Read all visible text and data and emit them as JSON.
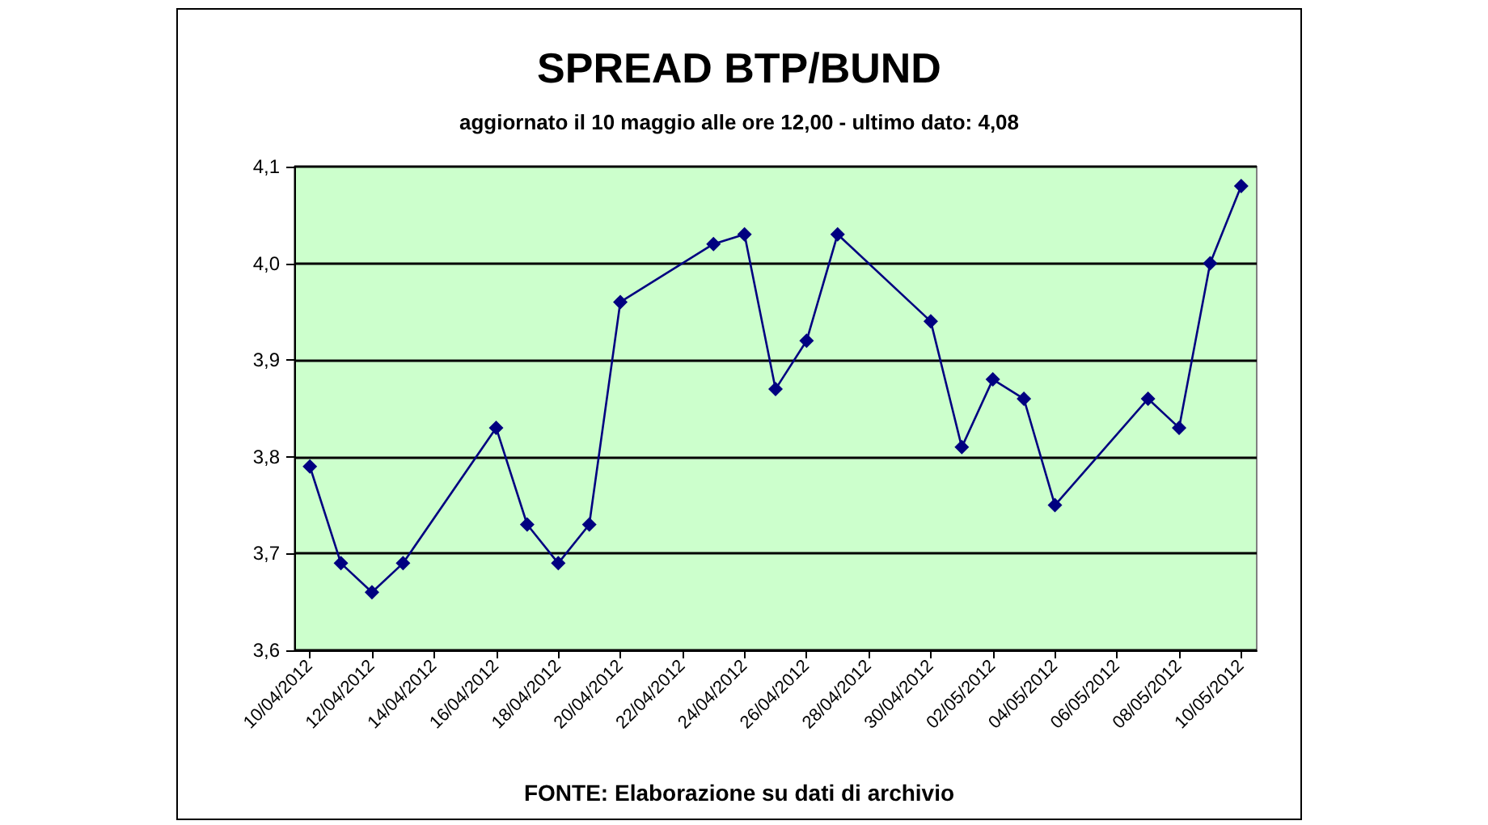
{
  "chart_data": {
    "type": "line",
    "title": "SPREAD BTP/BUND",
    "subtitle": "aggiornato il 10 maggio alle ore 12,00 - ultimo dato: 4,08",
    "annotations": [
      "FONTE: Elaborazione su dati di archivio"
    ],
    "x": [
      "2012-04-10",
      "2012-04-11",
      "2012-04-12",
      "2012-04-13",
      "2012-04-16",
      "2012-04-17",
      "2012-04-18",
      "2012-04-19",
      "2012-04-20",
      "2012-04-23",
      "2012-04-24",
      "2012-04-25",
      "2012-04-26",
      "2012-04-27",
      "2012-04-30",
      "2012-05-01",
      "2012-05-02",
      "2012-05-03",
      "2012-05-04",
      "2012-05-07",
      "2012-05-08",
      "2012-05-09",
      "2012-05-10"
    ],
    "series": [
      {
        "color": "#000080",
        "values": [
          3.79,
          3.69,
          3.66,
          3.69,
          3.83,
          3.73,
          3.69,
          3.73,
          3.96,
          4.02,
          4.03,
          3.87,
          3.92,
          4.03,
          3.94,
          3.81,
          3.88,
          3.86,
          3.75,
          3.86,
          3.83,
          4.0,
          4.08
        ]
      }
    ],
    "xlim": [
      "2012-04-09T12:00",
      "2012-05-10T12:00"
    ],
    "xticks": [
      {
        "value": "2012-04-10",
        "label": "10/04/2012"
      },
      {
        "value": "2012-04-12",
        "label": "12/04/2012"
      },
      {
        "value": "2012-04-14",
        "label": "14/04/2012"
      },
      {
        "value": "2012-04-16",
        "label": "16/04/2012"
      },
      {
        "value": "2012-04-18",
        "label": "18/04/2012"
      },
      {
        "value": "2012-04-20",
        "label": "20/04/2012"
      },
      {
        "value": "2012-04-22",
        "label": "22/04/2012"
      },
      {
        "value": "2012-04-24",
        "label": "24/04/2012"
      },
      {
        "value": "2012-04-26",
        "label": "26/04/2012"
      },
      {
        "value": "2012-04-28",
        "label": "28/04/2012"
      },
      {
        "value": "2012-04-30",
        "label": "30/04/2012"
      },
      {
        "value": "2012-05-02",
        "label": "02/05/2012"
      },
      {
        "value": "2012-05-04",
        "label": "04/05/2012"
      },
      {
        "value": "2012-05-06",
        "label": "06/05/2012"
      },
      {
        "value": "2012-05-08",
        "label": "08/05/2012"
      },
      {
        "value": "2012-05-10",
        "label": "10/05/2012"
      }
    ],
    "ylim": [
      3.6,
      4.1
    ],
    "yticks": [
      {
        "value": 3.6,
        "label": "3,6"
      },
      {
        "value": 3.7,
        "label": "3,7"
      },
      {
        "value": 3.8,
        "label": "3,8"
      },
      {
        "value": 3.9,
        "label": "3,9"
      },
      {
        "value": 4.0,
        "label": "4,0"
      },
      {
        "value": 4.1,
        "label": "4,1"
      }
    ],
    "grid": "y",
    "marker": "diamond",
    "line_style": "solid"
  }
}
